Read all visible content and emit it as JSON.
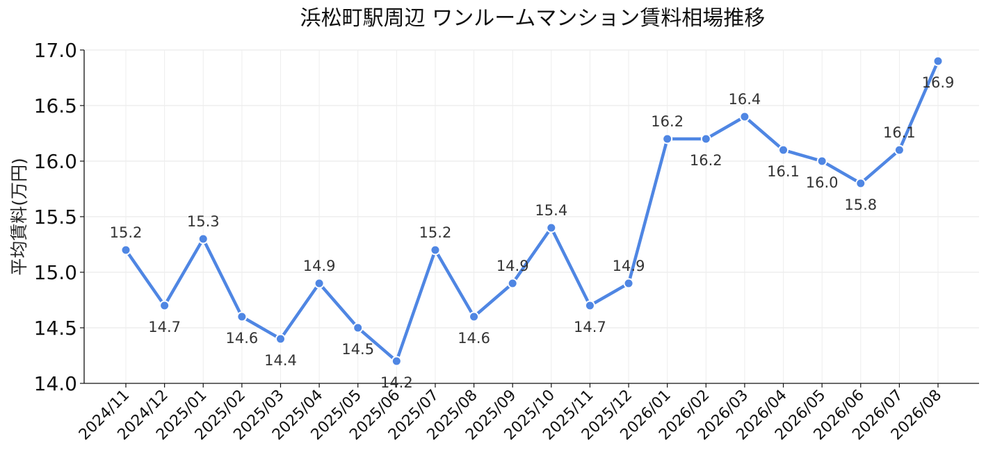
{
  "chart_data": {
    "type": "line",
    "title": "浜松町駅周辺 ワンルームマンション賃料相場推移",
    "xlabel": "",
    "ylabel": "平均賃料(万円)",
    "ylim": [
      14.0,
      17.0
    ],
    "yticks": [
      "14.0",
      "14.5",
      "15.0",
      "15.5",
      "16.0",
      "16.5",
      "17.0"
    ],
    "grid": true,
    "color": "#4f86e3",
    "categories": [
      "2024/11",
      "2024/12",
      "2025/01",
      "2025/02",
      "2025/03",
      "2025/04",
      "2025/05",
      "2025/06",
      "2025/07",
      "2025/08",
      "2025/09",
      "2025/10",
      "2025/11",
      "2025/12",
      "2026/01",
      "2026/02",
      "2026/03",
      "2026/04",
      "2026/05",
      "2026/06",
      "2026/07",
      "2026/08"
    ],
    "values": [
      15.2,
      14.7,
      15.3,
      14.6,
      14.4,
      14.9,
      14.5,
      14.2,
      15.2,
      14.6,
      14.9,
      15.4,
      14.7,
      14.9,
      16.2,
      16.2,
      16.4,
      16.1,
      16.0,
      15.8,
      16.1,
      16.9
    ],
    "data_labels": [
      "15.2",
      "14.7",
      "15.3",
      "14.6",
      "14.4",
      "14.9",
      "14.5",
      "14.2",
      "15.2",
      "14.6",
      "14.9",
      "15.4",
      "14.7",
      "14.9",
      "16.2",
      "16.2",
      "16.4",
      "16.1",
      "16.0",
      "15.8",
      "16.1",
      "16.9"
    ]
  }
}
